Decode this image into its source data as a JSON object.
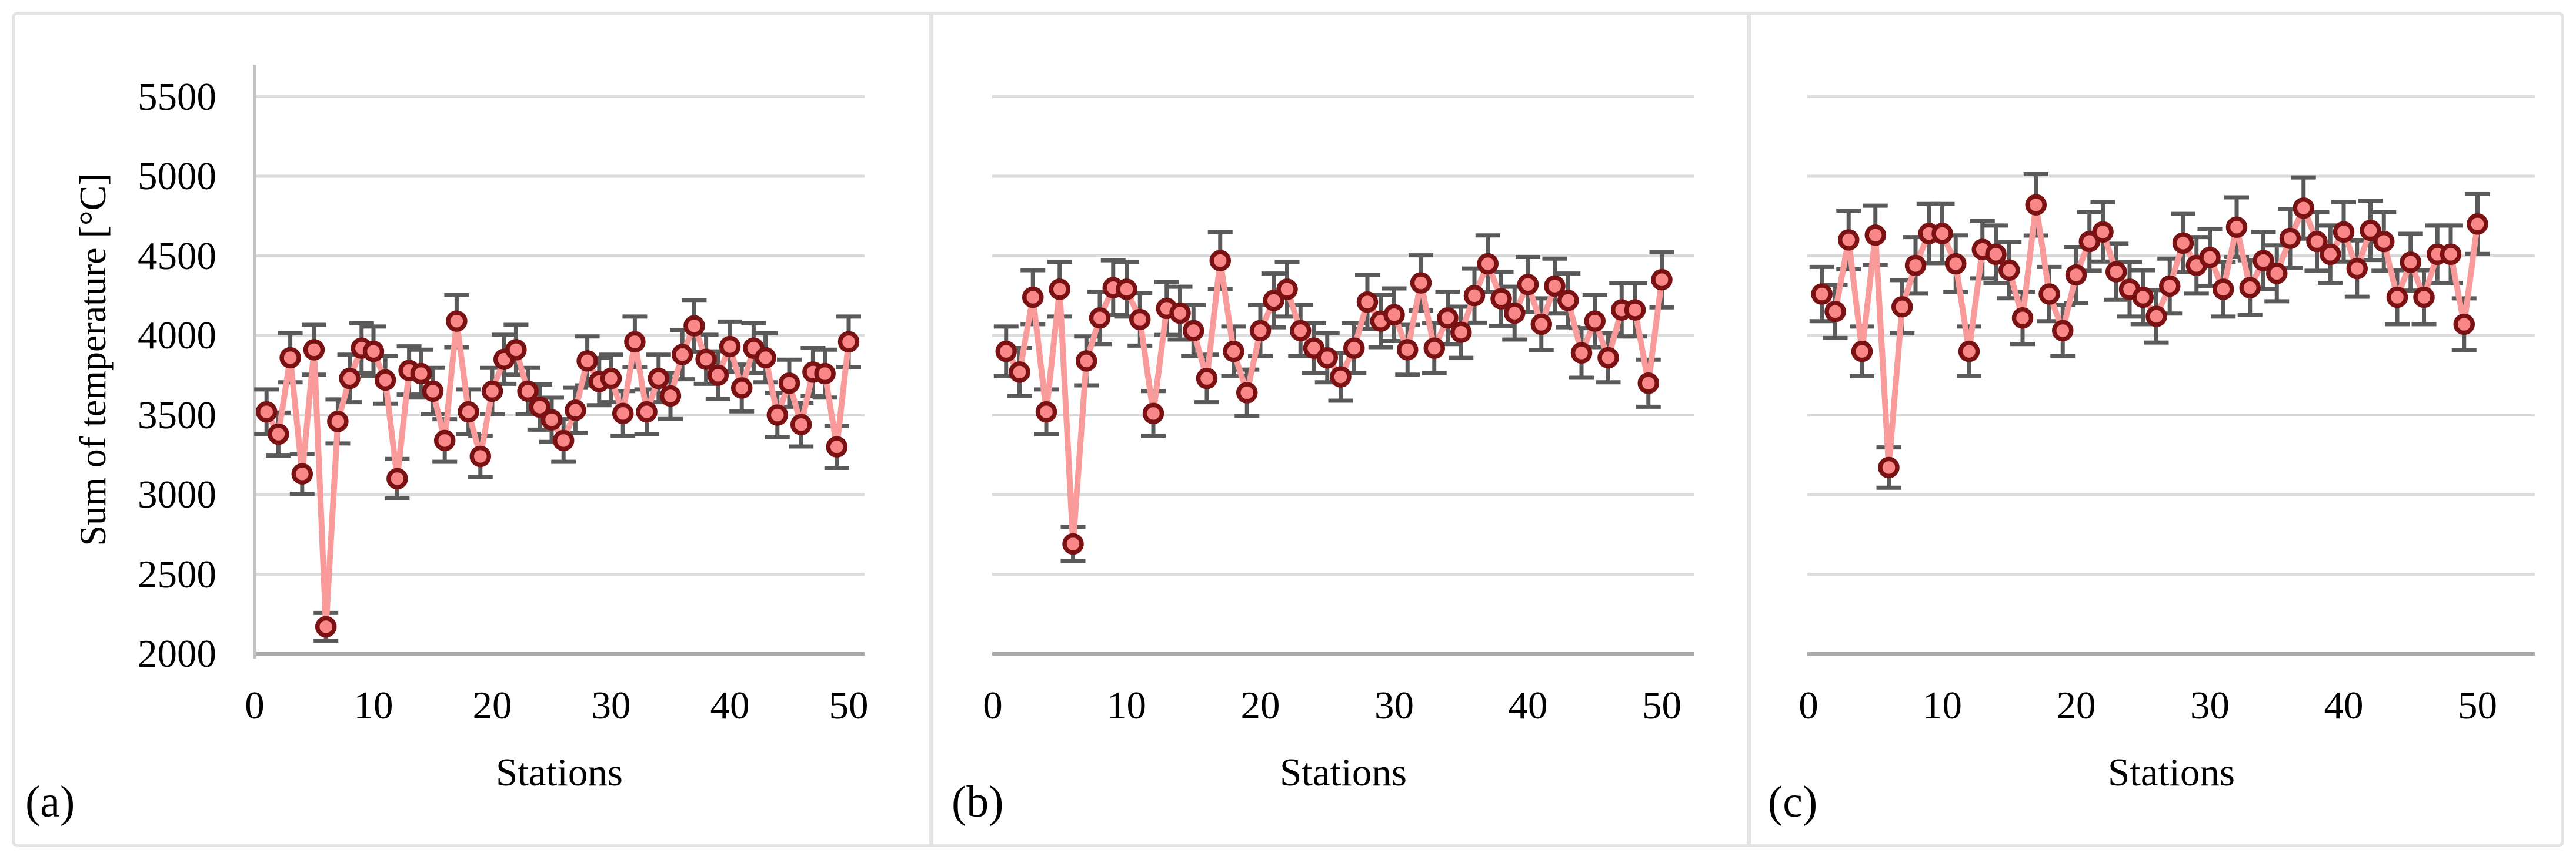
{
  "chart_data": {
    "type": "line",
    "title": "",
    "x_axis_title": "Stations",
    "y_axis_title": "Sum of temperature [°C]",
    "x_description": "Stations 1 to 50, one data point per station",
    "x_start": 1,
    "x_ticks": [
      0,
      10,
      20,
      30,
      40,
      50
    ],
    "y_ticks": [
      2000,
      2500,
      3000,
      3500,
      4000,
      4500,
      5000,
      5500
    ],
    "ylim": [
      2000,
      5500
    ],
    "grid": "horizontal",
    "legend": "none",
    "error_bars": {
      "type": "percent",
      "value": 4
    },
    "colors": {
      "marker_fill": "#F98787",
      "marker_border": "#7A1214",
      "line": "#F99B9B",
      "error_bar": "#5A5A5A",
      "gridline": "#DBDBDB",
      "axis_line": "#ABABAB",
      "y_axis_line": "#C2C2C2",
      "frame": "#E3E3E3",
      "text": "#000000"
    },
    "panels": [
      {
        "label": "(a)",
        "show_y_axis_labels": true,
        "values": [
          3520,
          3380,
          3860,
          3130,
          3910,
          2170,
          3460,
          3730,
          3920,
          3900,
          3720,
          3100,
          3780,
          3760,
          3650,
          3340,
          4090,
          3520,
          3240,
          3650,
          3850,
          3910,
          3650,
          3550,
          3470,
          3340,
          3530,
          3840,
          3710,
          3730,
          3510,
          3960,
          3520,
          3730,
          3620,
          3880,
          4060,
          3850,
          3750,
          3930,
          3670,
          3920,
          3860,
          3500,
          3700,
          3440,
          3770,
          3760,
          3300,
          3960
        ]
      },
      {
        "label": "(b)",
        "show_y_axis_labels": false,
        "values": [
          3900,
          3770,
          4240,
          3520,
          4290,
          2690,
          3840,
          4110,
          4300,
          4290,
          4100,
          3510,
          4170,
          4140,
          4030,
          3730,
          4470,
          3900,
          3640,
          4030,
          4220,
          4290,
          4030,
          3920,
          3860,
          3740,
          3920,
          4210,
          4090,
          4130,
          3910,
          4330,
          3920,
          4110,
          4020,
          4250,
          4450,
          4230,
          4140,
          4320,
          4070,
          4310,
          4220,
          3890,
          4090,
          3860,
          4160,
          4160,
          3700,
          4350
        ]
      },
      {
        "label": "(c)",
        "show_y_axis_labels": false,
        "values": [
          4260,
          4150,
          4600,
          3900,
          4630,
          3170,
          4180,
          4440,
          4640,
          4640,
          4450,
          3900,
          4540,
          4510,
          4410,
          4110,
          4820,
          4260,
          4030,
          4380,
          4590,
          4650,
          4400,
          4290,
          4240,
          4120,
          4310,
          4580,
          4440,
          4490,
          4290,
          4680,
          4300,
          4470,
          4390,
          4610,
          4800,
          4590,
          4510,
          4650,
          4420,
          4660,
          4590,
          4240,
          4460,
          4240,
          4510,
          4510,
          4070,
          4700
        ]
      }
    ]
  }
}
